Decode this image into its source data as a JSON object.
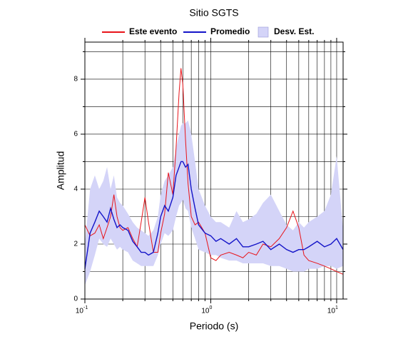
{
  "chart_data": {
    "type": "line",
    "title": "Sitio SGTS",
    "xlabel": "Periodo (s)",
    "ylabel": "Amplitud",
    "xscale": "log",
    "grid": true,
    "legend": "top",
    "xlim": [
      0.1,
      11.25
    ],
    "ylim": [
      0,
      9.35
    ],
    "xticks": [
      {
        "value": 0.1,
        "label": "10",
        "exponent": "-1"
      },
      {
        "value": 1,
        "label": "10",
        "exponent": "0"
      },
      {
        "value": 10,
        "label": "10",
        "exponent": "1"
      }
    ],
    "x_minor_ticks": [
      0.2,
      0.3,
      0.4,
      0.5,
      0.6,
      0.7,
      0.8,
      0.9,
      2,
      3,
      4,
      5,
      6,
      7,
      8,
      9
    ],
    "yticks": [
      0,
      2,
      4,
      6,
      8
    ],
    "y_minor_ticks": [
      1,
      3,
      5,
      7,
      9
    ],
    "x": [
      0.1,
      0.11,
      0.12,
      0.13,
      0.14,
      0.15,
      0.16,
      0.17,
      0.18,
      0.19,
      0.2,
      0.22,
      0.24,
      0.26,
      0.28,
      0.3,
      0.32,
      0.35,
      0.38,
      0.4,
      0.43,
      0.46,
      0.5,
      0.53,
      0.56,
      0.58,
      0.6,
      0.63,
      0.66,
      0.7,
      0.75,
      0.8,
      0.9,
      1.0,
      1.1,
      1.2,
      1.4,
      1.6,
      1.8,
      2.0,
      2.3,
      2.6,
      3.0,
      3.5,
      4.0,
      4.5,
      5.0,
      5.5,
      6,
      7,
      8,
      9,
      10,
      11.25
    ],
    "series": [
      {
        "name": "Desv. Est.",
        "type": "band",
        "color": "#d4d4f8",
        "upper": [
          2.0,
          4.0,
          4.5,
          4.0,
          4.3,
          4.8,
          4.0,
          4.5,
          3.7,
          3.5,
          3.4,
          3.1,
          2.8,
          2.6,
          2.5,
          2.4,
          2.3,
          2.5,
          3.0,
          3.8,
          4.3,
          4.5,
          4.8,
          5.5,
          6.0,
          6.3,
          6.4,
          6.4,
          6.5,
          6.0,
          5.0,
          4.0,
          3.4,
          3.0,
          2.8,
          2.8,
          2.6,
          3.2,
          2.8,
          2.9,
          3.1,
          3.5,
          3.8,
          3.2,
          2.7,
          2.5,
          2.8,
          2.6,
          2.8,
          3.0,
          3.2,
          3.8,
          5.2,
          2.5
        ],
        "lower": [
          0.5,
          1.0,
          1.6,
          2.2,
          2.0,
          1.9,
          2.2,
          2.0,
          1.8,
          1.9,
          1.8,
          1.7,
          1.4,
          1.3,
          1.2,
          1.2,
          1.2,
          1.2,
          1.6,
          2.0,
          2.4,
          2.3,
          2.5,
          3.0,
          3.4,
          3.5,
          3.6,
          3.3,
          3.2,
          2.6,
          2.2,
          1.8,
          1.7,
          1.6,
          1.6,
          1.5,
          1.4,
          1.4,
          1.3,
          1.3,
          1.3,
          1.3,
          1.2,
          1.2,
          1.1,
          1.0,
          1.0,
          1.0,
          1.1,
          1.1,
          1.2,
          1.2,
          1.1,
          1.2
        ]
      },
      {
        "name": "Este evento",
        "type": "line",
        "color": "#e8141a",
        "values": [
          2.7,
          2.3,
          2.4,
          2.7,
          2.2,
          2.6,
          3.0,
          3.8,
          3.0,
          2.6,
          2.5,
          2.6,
          2.2,
          1.9,
          2.8,
          3.7,
          2.8,
          1.7,
          1.7,
          2.4,
          3.1,
          4.6,
          3.8,
          5.5,
          7.5,
          8.4,
          7.8,
          5.8,
          4.2,
          3.0,
          2.7,
          2.8,
          2.4,
          1.5,
          1.4,
          1.6,
          1.7,
          1.6,
          1.5,
          1.7,
          1.6,
          2.0,
          1.9,
          2.2,
          2.6,
          3.2,
          2.6,
          1.6,
          1.4,
          1.3,
          1.2,
          1.1,
          1.0,
          0.9
        ]
      },
      {
        "name": "Promedio",
        "type": "line",
        "color": "#1414c8",
        "values": [
          1.1,
          2.4,
          2.8,
          3.2,
          3.0,
          2.8,
          3.3,
          2.9,
          2.6,
          2.7,
          2.6,
          2.5,
          2.1,
          1.9,
          1.7,
          1.7,
          1.6,
          1.7,
          2.4,
          3.0,
          3.4,
          3.2,
          3.7,
          4.5,
          4.8,
          5.0,
          5.0,
          4.8,
          4.9,
          4.0,
          3.3,
          2.7,
          2.4,
          2.3,
          2.1,
          2.2,
          2.0,
          2.2,
          1.9,
          1.9,
          2.0,
          2.1,
          1.8,
          2.0,
          1.8,
          1.7,
          1.8,
          1.8,
          1.9,
          2.1,
          1.9,
          2.0,
          2.2,
          1.8
        ]
      }
    ]
  }
}
